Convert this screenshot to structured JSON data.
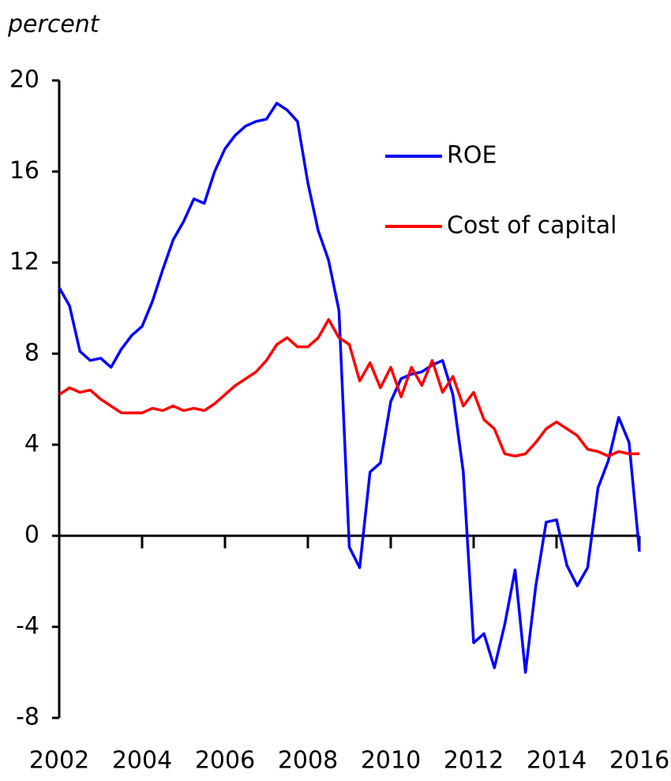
{
  "chart_data": {
    "type": "line",
    "y_unit_label": "percent",
    "x": [
      2002,
      2002.25,
      2002.5,
      2002.75,
      2003,
      2003.25,
      2003.5,
      2003.75,
      2004,
      2004.25,
      2004.5,
      2004.75,
      2005,
      2005.25,
      2005.5,
      2005.75,
      2006,
      2006.25,
      2006.5,
      2006.75,
      2007,
      2007.25,
      2007.5,
      2007.75,
      2008,
      2008.25,
      2008.5,
      2008.75,
      2009,
      2009.25,
      2009.5,
      2009.75,
      2010,
      2010.25,
      2010.5,
      2010.75,
      2011,
      2011.25,
      2011.5,
      2011.75,
      2012,
      2012.25,
      2012.5,
      2012.75,
      2013,
      2013.25,
      2013.5,
      2013.75,
      2014,
      2014.25,
      2014.5,
      2014.75,
      2015,
      2015.25,
      2015.5,
      2015.75,
      2016
    ],
    "series": [
      {
        "name": "ROE",
        "color": "#0000ff",
        "values": [
          10.9,
          10.1,
          8.1,
          7.7,
          7.8,
          7.4,
          8.2,
          8.8,
          9.2,
          10.3,
          11.7,
          13.0,
          13.8,
          14.8,
          14.6,
          16.0,
          17.0,
          17.6,
          18.0,
          18.2,
          18.3,
          19.0,
          18.7,
          18.2,
          15.5,
          13.4,
          12.1,
          9.9,
          -0.5,
          -1.4,
          2.8,
          3.2,
          5.9,
          6.9,
          7.1,
          7.2,
          7.5,
          7.7,
          6.2,
          2.8,
          -4.7,
          -4.3,
          -5.8,
          -3.9,
          -1.5,
          -6.0,
          -2.2,
          0.6,
          0.7,
          -1.3,
          -2.2,
          -1.4,
          2.1,
          3.3,
          5.2,
          4.1,
          -0.7
        ]
      },
      {
        "name": "Cost of capital",
        "color": "#ff0000",
        "values": [
          6.2,
          6.5,
          6.3,
          6.4,
          6.0,
          5.7,
          5.4,
          5.4,
          5.4,
          5.6,
          5.5,
          5.7,
          5.5,
          5.6,
          5.5,
          5.8,
          6.2,
          6.6,
          6.9,
          7.2,
          7.7,
          8.4,
          8.7,
          8.3,
          8.3,
          8.7,
          9.5,
          8.7,
          8.4,
          6.8,
          7.6,
          6.5,
          7.4,
          6.1,
          7.4,
          6.6,
          7.7,
          6.3,
          7.0,
          5.7,
          6.3,
          5.1,
          4.7,
          3.6,
          3.5,
          3.6,
          4.1,
          4.7,
          5.0,
          4.7,
          4.4,
          3.8,
          3.7,
          3.5,
          3.7,
          3.6,
          3.6
        ]
      }
    ],
    "xlim": [
      2002,
      2016
    ],
    "xticks": [
      2002,
      2004,
      2006,
      2008,
      2010,
      2012,
      2014,
      2016
    ],
    "ylim": [
      -8,
      20
    ],
    "yticks": [
      -8,
      -4,
      0,
      4,
      8,
      12,
      16,
      20
    ],
    "grid": false
  }
}
